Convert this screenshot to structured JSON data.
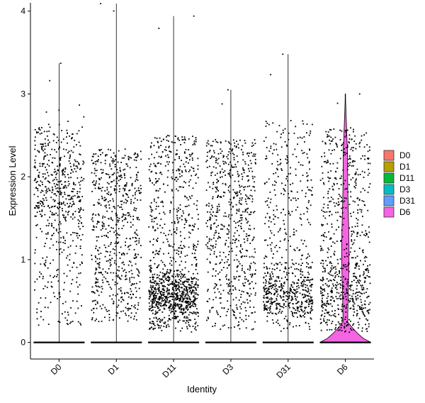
{
  "chart_data": {
    "type": "violin",
    "title": "",
    "xlabel": "Identity",
    "ylabel": "Expression Level",
    "categories": [
      "D0",
      "D1",
      "D11",
      "D3",
      "D31",
      "D6"
    ],
    "ylim": [
      -0.2,
      4.1
    ],
    "yticks": [
      0,
      1,
      2,
      3,
      4
    ],
    "grid": false,
    "legend_position": "right",
    "series": [
      {
        "name": "D0",
        "color": "#F8766D",
        "max": 3.37,
        "zero_fraction": 0.72,
        "nonzero_range": [
          0.2,
          2.6
        ],
        "n_points": 600
      },
      {
        "name": "D1",
        "color": "#B79F00",
        "max": 4.09,
        "zero_fraction": 0.74,
        "nonzero_range": [
          0.25,
          2.35
        ],
        "n_points": 640
      },
      {
        "name": "D11",
        "color": "#00BA38",
        "max": 3.94,
        "zero_fraction": 0.63,
        "nonzero_range": [
          0.15,
          2.5
        ],
        "n_points": 1150
      },
      {
        "name": "D3",
        "color": "#00BFC4",
        "max": 3.05,
        "zero_fraction": 0.75,
        "nonzero_range": [
          0.15,
          2.45
        ],
        "n_points": 650
      },
      {
        "name": "D31",
        "color": "#619CFF",
        "max": 3.48,
        "zero_fraction": 0.74,
        "nonzero_range": [
          0.3,
          2.7
        ],
        "n_points": 720
      },
      {
        "name": "D6",
        "color": "#F564E3",
        "max": 3.0,
        "zero_fraction": 0.62,
        "nonzero_range": [
          0.2,
          2.6
        ],
        "n_points": 780,
        "violin_visible": true
      }
    ]
  }
}
